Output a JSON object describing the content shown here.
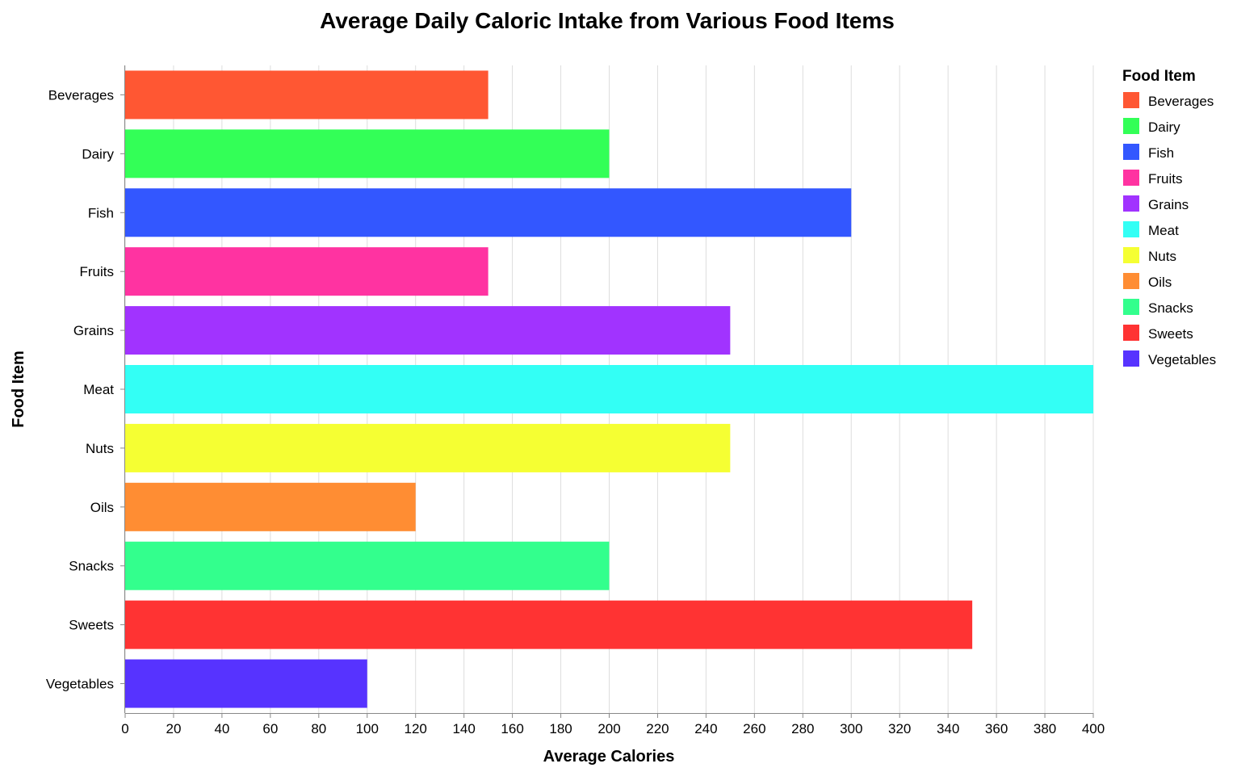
{
  "chart_data": {
    "type": "bar",
    "orientation": "horizontal",
    "title": "Average Daily Caloric Intake from Various Food Items",
    "xlabel": "Average Calories",
    "ylabel": "Food Item",
    "xlim": [
      0,
      400
    ],
    "x_ticks": [
      0,
      20,
      40,
      60,
      80,
      100,
      120,
      140,
      160,
      180,
      200,
      220,
      240,
      260,
      280,
      300,
      320,
      340,
      360,
      380,
      400
    ],
    "grid": true,
    "legend": {
      "title": "Food Item",
      "placement": "right"
    },
    "categories": [
      "Beverages",
      "Dairy",
      "Fish",
      "Fruits",
      "Grains",
      "Meat",
      "Nuts",
      "Oils",
      "Snacks",
      "Sweets",
      "Vegetables"
    ],
    "values": [
      150,
      200,
      300,
      150,
      250,
      400,
      250,
      120,
      200,
      350,
      100
    ],
    "colors": [
      "#FF5733",
      "#33FF57",
      "#3357FF",
      "#FF33A1",
      "#A133FF",
      "#33FFF5",
      "#F5FF33",
      "#FF8D33",
      "#33FF8D",
      "#FF3333",
      "#5733FF"
    ]
  }
}
